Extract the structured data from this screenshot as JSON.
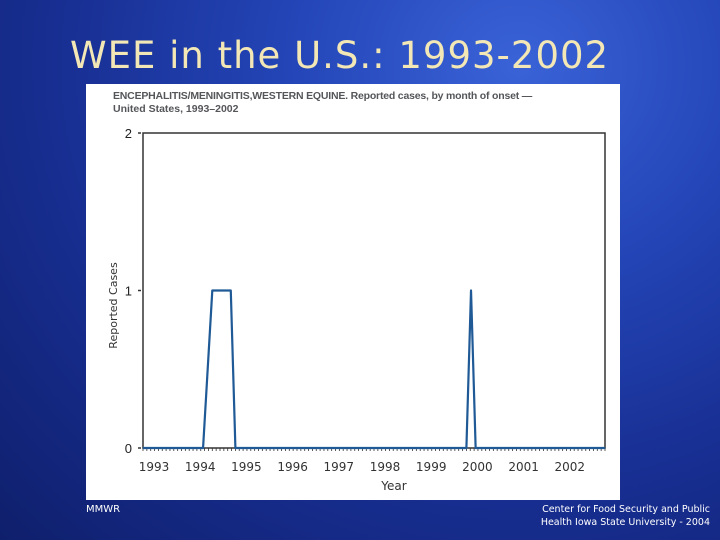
{
  "slide": {
    "title": "WEE in the U.S.: 1993-2002",
    "footer_left": "MMWR",
    "footer_right_line1": "Center for Food Security and Public",
    "footer_right_line2": "Health  Iowa State University - 2004"
  },
  "chart_data": {
    "type": "line",
    "title": "ENCEPHALITIS/MENINGITIS,WESTERN EQUINE. Reported cases, by month of onset —",
    "subtitle": "United States, 1993–2002",
    "xlabel": "Year",
    "ylabel": "Reported Cases",
    "ylim": [
      0,
      2
    ],
    "yticks": [
      "0",
      "1",
      "2"
    ],
    "xlim": [
      1993,
      2003
    ],
    "xticks": [
      "1993",
      "1994",
      "1995",
      "1996",
      "1997",
      "1998",
      "1999",
      "2000",
      "2001",
      "2002"
    ],
    "grid": false,
    "color": "#1f5a96",
    "series": [
      {
        "x": [
          1993.0,
          1994.0,
          1994.3,
          1994.5,
          1994.9,
          1995.0,
          1995.3,
          1995.5,
          1995.8,
          1996.0,
          1997.0,
          1998.0,
          1999.0,
          1999.95,
          2000.0,
          2000.1,
          2000.2,
          2001.0,
          2002.0,
          2003.0
        ],
        "y": [
          0,
          0,
          0,
          1,
          1,
          0,
          0,
          0,
          0,
          0,
          0,
          0,
          0,
          0,
          0,
          1,
          0,
          0,
          0,
          0
        ]
      }
    ]
  }
}
